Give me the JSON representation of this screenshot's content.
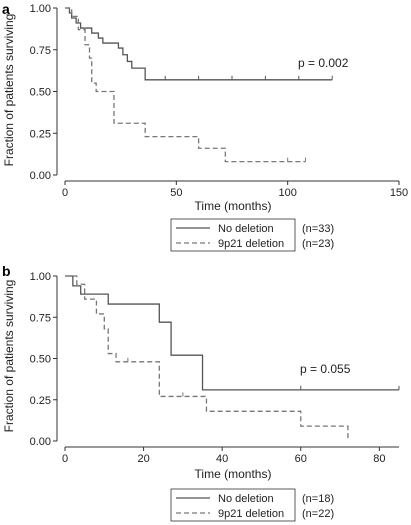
{
  "figure": {
    "panels": [
      "a",
      "b"
    ],
    "ylabel": "Fraction of patients surviving",
    "xlabel": "Time (months)"
  },
  "colors": {
    "no_deletion": "#555555",
    "deletion": "#777777",
    "axis": "#333333"
  },
  "chart_data": [
    {
      "type": "line",
      "panel_label": "a",
      "xlabel": "Time (months)",
      "ylabel": "Fraction of patients surviving",
      "xlim": [
        0,
        150
      ],
      "ylim": [
        0,
        1
      ],
      "x_ticks": [
        0,
        50,
        100,
        150
      ],
      "y_ticks": [
        0.0,
        0.25,
        0.5,
        0.75,
        1.0
      ],
      "x_tick_labels": [
        "0",
        "50",
        "100",
        "150"
      ],
      "y_tick_labels": [
        "0.00",
        "0.25",
        "0.50",
        "0.75",
        "1.00"
      ],
      "grid": false,
      "annotation": "p = 0.002",
      "legend_placement": "bottom",
      "series": [
        {
          "name": "No deletion",
          "count": "(n=33)",
          "style": "solid",
          "x": [
            0,
            2,
            3,
            5,
            7,
            10,
            12,
            15,
            17,
            20,
            22,
            24,
            26,
            28,
            30,
            36,
            120
          ],
          "y": [
            1.0,
            0.97,
            0.94,
            0.91,
            0.88,
            0.88,
            0.85,
            0.82,
            0.79,
            0.79,
            0.79,
            0.76,
            0.72,
            0.68,
            0.64,
            0.57,
            0.57
          ],
          "censored": [
            [
              45,
              0.57
            ],
            [
              60,
              0.57
            ],
            [
              75,
              0.57
            ],
            [
              90,
              0.57
            ],
            [
              105,
              0.57
            ],
            [
              120,
              0.57
            ]
          ]
        },
        {
          "name": "9p21 deletion",
          "count": "(n=23)",
          "style": "dashed",
          "x": [
            0,
            3,
            6,
            9,
            11,
            12,
            14,
            17,
            22,
            26,
            36,
            60,
            72,
            108
          ],
          "y": [
            1.0,
            0.95,
            0.87,
            0.78,
            0.7,
            0.55,
            0.5,
            0.5,
            0.31,
            0.31,
            0.23,
            0.16,
            0.08,
            0.08
          ],
          "censored": [
            [
              100,
              0.08
            ],
            [
              108,
              0.08
            ]
          ]
        }
      ]
    },
    {
      "type": "line",
      "panel_label": "b",
      "xlabel": "Time (months)",
      "ylabel": "Fraction of patients surviving",
      "xlim": [
        0,
        85
      ],
      "ylim": [
        0,
        1
      ],
      "x_ticks": [
        0,
        20,
        40,
        60,
        80
      ],
      "y_ticks": [
        0.0,
        0.25,
        0.5,
        0.75,
        1.0
      ],
      "x_tick_labels": [
        "0",
        "20",
        "40",
        "60",
        "80"
      ],
      "y_tick_labels": [
        "0.00",
        "0.25",
        "0.50",
        "0.75",
        "1.00"
      ],
      "grid": false,
      "annotation": "p = 0.055",
      "legend_placement": "bottom",
      "series": [
        {
          "name": "No deletion",
          "count": "(n=18)",
          "style": "solid",
          "x": [
            0,
            2,
            4,
            6,
            11,
            23,
            24,
            27,
            35,
            85
          ],
          "y": [
            1.0,
            0.94,
            0.89,
            0.89,
            0.83,
            0.83,
            0.72,
            0.52,
            0.31,
            0.31
          ],
          "censored": [
            [
              60,
              0.31
            ],
            [
              85,
              0.31
            ]
          ]
        },
        {
          "name": "9p21 deletion",
          "count": "(n=22)",
          "style": "dashed",
          "x": [
            0,
            3,
            5,
            7,
            8,
            10,
            11,
            13,
            24,
            35,
            36,
            59,
            60,
            72
          ],
          "y": [
            1.0,
            0.95,
            0.86,
            0.86,
            0.77,
            0.68,
            0.53,
            0.48,
            0.27,
            0.27,
            0.18,
            0.18,
            0.09,
            0.0
          ],
          "censored": [
            [
              16,
              0.48
            ],
            [
              30,
              0.27
            ]
          ]
        }
      ]
    }
  ]
}
